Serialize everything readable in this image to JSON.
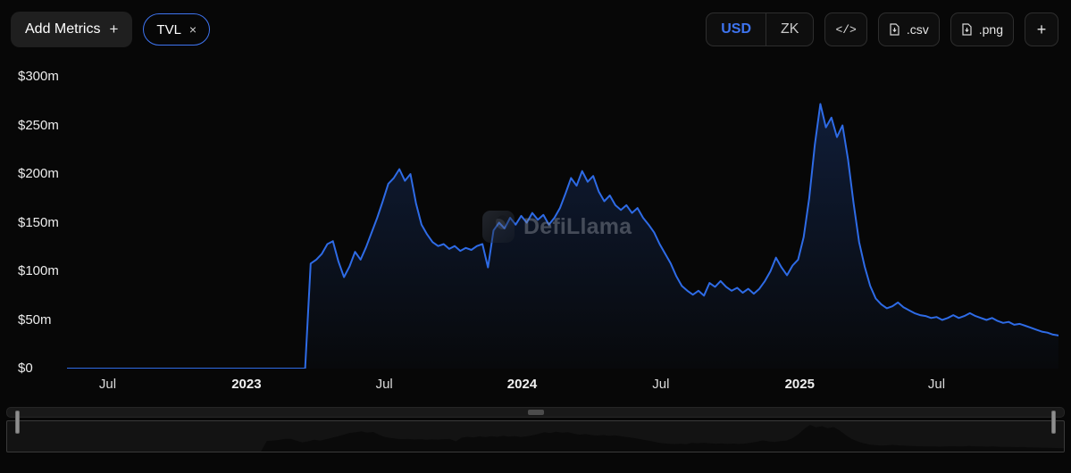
{
  "colors": {
    "accent": "#3e74f0",
    "line": "#2e6be6",
    "background": "#070707",
    "mini_fill": "#0a0a0a"
  },
  "header": {
    "add_metrics": {
      "label": "Add Metrics",
      "plus": "+"
    },
    "tvl_pill": {
      "label": "TVL",
      "close": "×"
    },
    "currency_toggle": {
      "options": [
        "USD",
        "ZK"
      ],
      "selected": "USD"
    },
    "embed_icon_text": "</>",
    "csv_button_label": ".csv",
    "png_button_label": ".png",
    "add_chart_label": "+"
  },
  "watermark": {
    "text": "DefiLlama"
  },
  "chart_data": {
    "type": "area",
    "title": "TVL",
    "unit": "USD",
    "ylim": [
      0,
      300
    ],
    "grid": false,
    "legend": "none",
    "y_ticks": [
      "$300m",
      "$250m",
      "$200m",
      "$150m",
      "$100m",
      "$50m",
      "$0"
    ],
    "y_tick_values": [
      300,
      250,
      200,
      150,
      100,
      50,
      0
    ],
    "x_ticks": [
      {
        "label": "Jul",
        "pos": 0.041,
        "bold": false
      },
      {
        "label": "2023",
        "pos": 0.181,
        "bold": true
      },
      {
        "label": "Jul",
        "pos": 0.32,
        "bold": false
      },
      {
        "label": "2024",
        "pos": 0.459,
        "bold": true
      },
      {
        "label": "Jul",
        "pos": 0.599,
        "bold": false
      },
      {
        "label": "2025",
        "pos": 0.739,
        "bold": true
      },
      {
        "label": "Jul",
        "pos": 0.877,
        "bold": false
      }
    ],
    "values_unit": "millions USD",
    "values": [
      0,
      0,
      0,
      0,
      0,
      0,
      0,
      0,
      0,
      0,
      0,
      0,
      0,
      0,
      0,
      0,
      0,
      0,
      0,
      0,
      0,
      0,
      0,
      0,
      0,
      0,
      0,
      0,
      0,
      0,
      0,
      0,
      0,
      0,
      0,
      0,
      0,
      0,
      0,
      0,
      0,
      0,
      0,
      0,
      108,
      112,
      118,
      128,
      131,
      110,
      94,
      105,
      120,
      112,
      125,
      140,
      155,
      172,
      190,
      196,
      205,
      193,
      200,
      170,
      148,
      138,
      130,
      126,
      128,
      123,
      126,
      121,
      124,
      122,
      126,
      128,
      104,
      142,
      150,
      144,
      155,
      148,
      157,
      150,
      160,
      153,
      158,
      148,
      155,
      165,
      180,
      196,
      188,
      203,
      192,
      198,
      182,
      172,
      178,
      168,
      163,
      168,
      160,
      165,
      155,
      148,
      140,
      128,
      118,
      108,
      95,
      85,
      80,
      76,
      80,
      75,
      88,
      84,
      90,
      84,
      80,
      83,
      78,
      82,
      77,
      82,
      90,
      100,
      114,
      104,
      96,
      106,
      112,
      135,
      175,
      230,
      272,
      248,
      258,
      238,
      250,
      215,
      170,
      130,
      105,
      85,
      72,
      66,
      62,
      64,
      68,
      63,
      60,
      57,
      55,
      54,
      52,
      53,
      50,
      52,
      55,
      52,
      54,
      57,
      54,
      52,
      50,
      52,
      49,
      47,
      48,
      45,
      46,
      44,
      42,
      40,
      38,
      37,
      35,
      34
    ]
  }
}
